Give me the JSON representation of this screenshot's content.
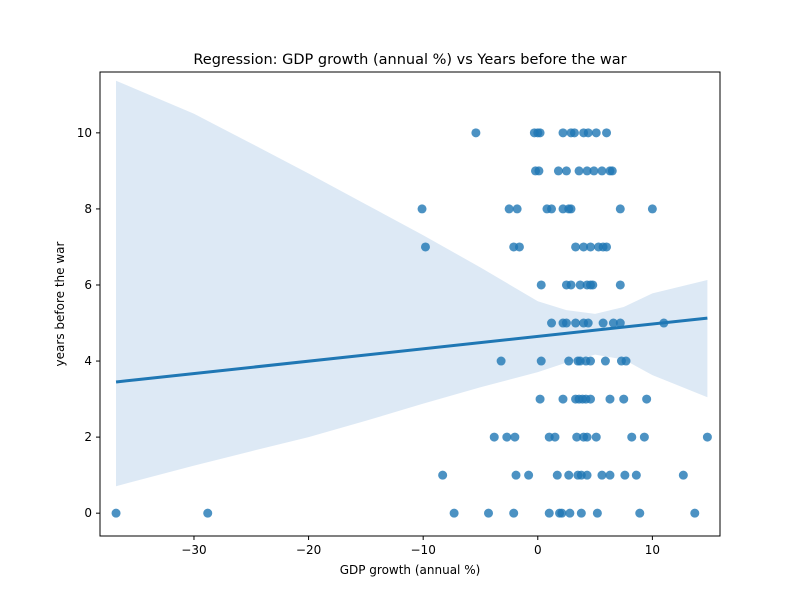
{
  "chart_data": {
    "type": "scatter",
    "title": "Regression: GDP growth (annual %) vs Years before the war",
    "xlabel": "GDP growth (annual %)",
    "ylabel": "years before the war",
    "xlim": [
      -38.2,
      15.9
    ],
    "ylim": [
      -0.6,
      11.6
    ],
    "xticks": [
      -30,
      -20,
      -10,
      0,
      10
    ],
    "xtick_labels": [
      "−30",
      "−20",
      "−10",
      "0",
      "10"
    ],
    "yticks": [
      0,
      2,
      4,
      6,
      8,
      10
    ],
    "ytick_labels": [
      "0",
      "2",
      "4",
      "6",
      "8",
      "10"
    ],
    "grid": false,
    "colors": {
      "points": "#1f77b4",
      "line": "#1f77b4",
      "band": "#c6dbef"
    },
    "points": [
      {
        "x": -5.4,
        "y": 10
      },
      {
        "x": -0.3,
        "y": 10
      },
      {
        "x": 0,
        "y": 10
      },
      {
        "x": 0.2,
        "y": 10
      },
      {
        "x": 2.2,
        "y": 10
      },
      {
        "x": 2.9,
        "y": 10
      },
      {
        "x": 3.2,
        "y": 10
      },
      {
        "x": 4.0,
        "y": 10
      },
      {
        "x": 4.4,
        "y": 10
      },
      {
        "x": 5.1,
        "y": 10
      },
      {
        "x": 6.0,
        "y": 10
      },
      {
        "x": -0.2,
        "y": 9
      },
      {
        "x": 0.1,
        "y": 9
      },
      {
        "x": 1.8,
        "y": 9
      },
      {
        "x": 2.5,
        "y": 9
      },
      {
        "x": 3.6,
        "y": 9
      },
      {
        "x": 4.3,
        "y": 9
      },
      {
        "x": 4.9,
        "y": 9
      },
      {
        "x": 5.6,
        "y": 9
      },
      {
        "x": 6.3,
        "y": 9
      },
      {
        "x": 6.5,
        "y": 9
      },
      {
        "x": -10.1,
        "y": 8
      },
      {
        "x": -2.5,
        "y": 8
      },
      {
        "x": -1.8,
        "y": 8
      },
      {
        "x": 0.8,
        "y": 8
      },
      {
        "x": 1.2,
        "y": 8
      },
      {
        "x": 2.2,
        "y": 8
      },
      {
        "x": 2.7,
        "y": 8
      },
      {
        "x": 2.9,
        "y": 8
      },
      {
        "x": 7.2,
        "y": 8
      },
      {
        "x": 10.0,
        "y": 8
      },
      {
        "x": -9.8,
        "y": 7
      },
      {
        "x": -2.1,
        "y": 7
      },
      {
        "x": -1.6,
        "y": 7
      },
      {
        "x": 3.3,
        "y": 7
      },
      {
        "x": 4.0,
        "y": 7
      },
      {
        "x": 4.6,
        "y": 7
      },
      {
        "x": 5.3,
        "y": 7
      },
      {
        "x": 5.7,
        "y": 7
      },
      {
        "x": 6.0,
        "y": 7
      },
      {
        "x": 0.3,
        "y": 6
      },
      {
        "x": 2.5,
        "y": 6
      },
      {
        "x": 2.9,
        "y": 6
      },
      {
        "x": 3.7,
        "y": 6
      },
      {
        "x": 4.3,
        "y": 6
      },
      {
        "x": 4.6,
        "y": 6
      },
      {
        "x": 4.8,
        "y": 6
      },
      {
        "x": 7.2,
        "y": 6
      },
      {
        "x": 1.2,
        "y": 5
      },
      {
        "x": 2.2,
        "y": 5
      },
      {
        "x": 2.5,
        "y": 5
      },
      {
        "x": 3.3,
        "y": 5
      },
      {
        "x": 4.0,
        "y": 5
      },
      {
        "x": 4.4,
        "y": 5
      },
      {
        "x": 5.7,
        "y": 5
      },
      {
        "x": 6.6,
        "y": 5
      },
      {
        "x": 7.2,
        "y": 5
      },
      {
        "x": 11.0,
        "y": 5
      },
      {
        "x": -3.2,
        "y": 4
      },
      {
        "x": 0.3,
        "y": 4
      },
      {
        "x": 2.7,
        "y": 4
      },
      {
        "x": 3.5,
        "y": 4
      },
      {
        "x": 3.7,
        "y": 4
      },
      {
        "x": 4.2,
        "y": 4
      },
      {
        "x": 4.6,
        "y": 4
      },
      {
        "x": 5.9,
        "y": 4
      },
      {
        "x": 7.3,
        "y": 4
      },
      {
        "x": 7.7,
        "y": 4
      },
      {
        "x": 0.2,
        "y": 3
      },
      {
        "x": 2.2,
        "y": 3
      },
      {
        "x": 3.3,
        "y": 3
      },
      {
        "x": 3.6,
        "y": 3
      },
      {
        "x": 3.9,
        "y": 3
      },
      {
        "x": 4.2,
        "y": 3
      },
      {
        "x": 4.6,
        "y": 3
      },
      {
        "x": 6.3,
        "y": 3
      },
      {
        "x": 7.5,
        "y": 3
      },
      {
        "x": 9.5,
        "y": 3
      },
      {
        "x": -3.8,
        "y": 2
      },
      {
        "x": -2.7,
        "y": 2
      },
      {
        "x": -2.0,
        "y": 2
      },
      {
        "x": 1.0,
        "y": 2
      },
      {
        "x": 1.5,
        "y": 2
      },
      {
        "x": 3.4,
        "y": 2
      },
      {
        "x": 4.0,
        "y": 2
      },
      {
        "x": 4.3,
        "y": 2
      },
      {
        "x": 5.1,
        "y": 2
      },
      {
        "x": 8.2,
        "y": 2
      },
      {
        "x": 9.3,
        "y": 2
      },
      {
        "x": 14.8,
        "y": 2
      },
      {
        "x": -8.3,
        "y": 1
      },
      {
        "x": -1.9,
        "y": 1
      },
      {
        "x": -0.8,
        "y": 1
      },
      {
        "x": 1.7,
        "y": 1
      },
      {
        "x": 2.7,
        "y": 1
      },
      {
        "x": 3.5,
        "y": 1
      },
      {
        "x": 3.8,
        "y": 1
      },
      {
        "x": 4.3,
        "y": 1
      },
      {
        "x": 5.6,
        "y": 1
      },
      {
        "x": 6.3,
        "y": 1
      },
      {
        "x": 7.6,
        "y": 1
      },
      {
        "x": 8.6,
        "y": 1
      },
      {
        "x": 12.7,
        "y": 1
      },
      {
        "x": -36.8,
        "y": 0
      },
      {
        "x": -28.8,
        "y": 0
      },
      {
        "x": -7.3,
        "y": 0
      },
      {
        "x": -4.3,
        "y": 0
      },
      {
        "x": -2.1,
        "y": 0
      },
      {
        "x": 1.0,
        "y": 0
      },
      {
        "x": 1.9,
        "y": 0
      },
      {
        "x": 2.1,
        "y": 0
      },
      {
        "x": 2.8,
        "y": 0
      },
      {
        "x": 3.8,
        "y": 0
      },
      {
        "x": 5.2,
        "y": 0
      },
      {
        "x": 8.9,
        "y": 0
      },
      {
        "x": 13.7,
        "y": 0
      }
    ],
    "regression_line": {
      "x": [
        -36.8,
        14.8
      ],
      "y": [
        3.45,
        5.13
      ]
    },
    "confidence_band": {
      "x": [
        -36.8,
        -30,
        -25,
        -20,
        -15,
        -10,
        -5,
        0,
        2.5,
        5,
        7.5,
        10,
        14.8
      ],
      "upper": [
        11.37,
        10.5,
        9.72,
        8.93,
        8.12,
        7.31,
        6.46,
        5.57,
        5.34,
        5.24,
        5.42,
        5.78,
        6.13
      ],
      "lower": [
        0.71,
        1.25,
        1.63,
        2.0,
        2.43,
        2.88,
        3.31,
        3.71,
        3.96,
        4.17,
        4.04,
        3.63,
        3.05
      ]
    }
  }
}
